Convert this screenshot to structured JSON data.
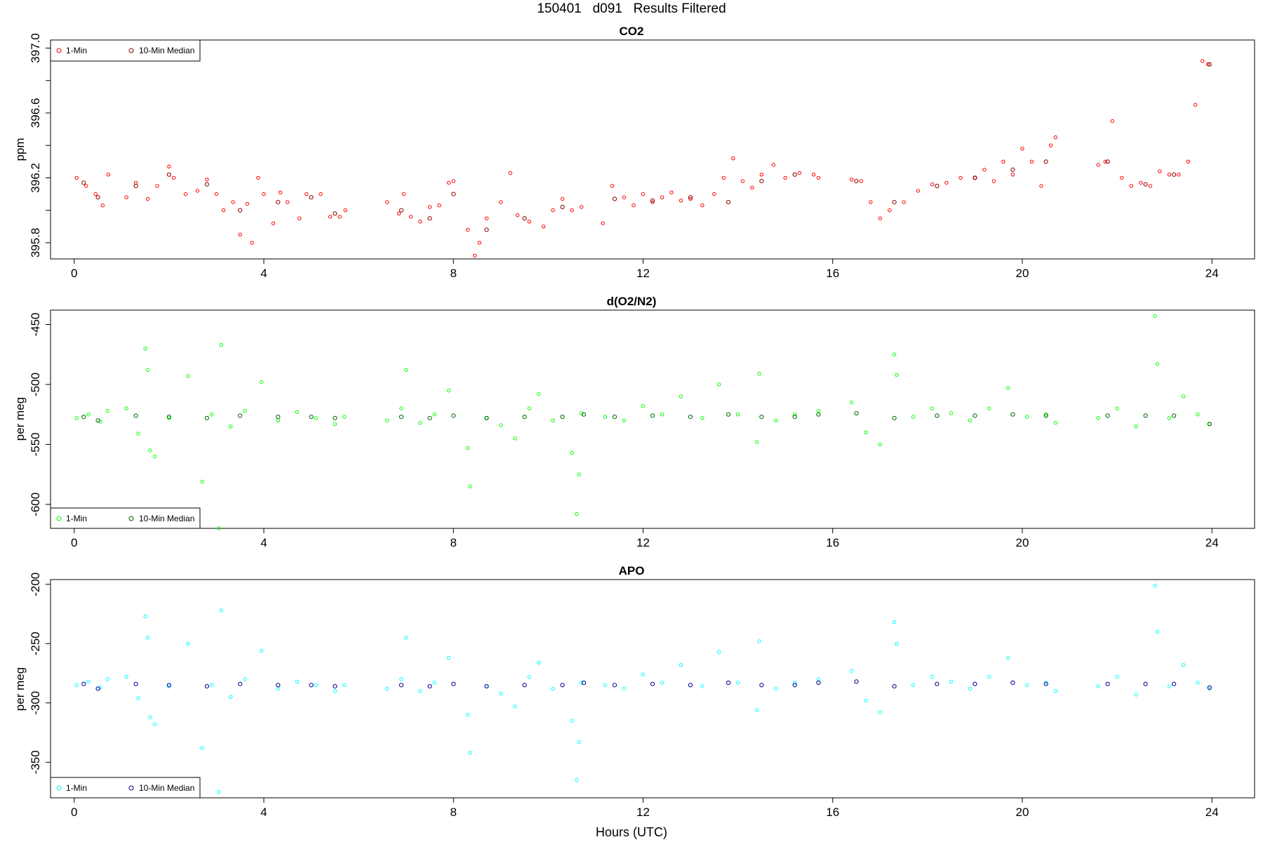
{
  "figure_title": "150401   d091   Results Filtered",
  "x_axis_label": "Hours (UTC)",
  "chart_data": [
    {
      "type": "scatter",
      "title": "CO2",
      "ylabel": "ppm",
      "xlabel": "Hours (UTC)",
      "xlim": [
        -0.5,
        24.9
      ],
      "ylim": [
        395.7,
        397.05
      ],
      "x_ticks": [
        0,
        4,
        8,
        12,
        16,
        20,
        24
      ],
      "x_tick_labels": [
        "0",
        "4",
        "8",
        "12",
        "16",
        "20",
        "24"
      ],
      "y_ticks": [
        395.8,
        396.2,
        396.6,
        397.0
      ],
      "y_tick_labels": [
        "395.8",
        "396.2",
        "396.6",
        "397.0"
      ],
      "y_minor_ticks": [
        396.0,
        396.4,
        396.8
      ],
      "grid": false,
      "legend": {
        "placement": "top-left",
        "entries": [
          {
            "label": "1-Min",
            "color": "#ff0000"
          },
          {
            "label": "10-Min Median",
            "color": "#8b0000"
          }
        ]
      },
      "series": [
        {
          "name": "1-Min",
          "color": "#ff0000",
          "x": [
            0.05,
            0.25,
            0.45,
            0.6,
            0.72,
            1.1,
            1.3,
            1.55,
            1.75,
            2.0,
            2.1,
            2.35,
            2.6,
            2.8,
            3.0,
            3.15,
            3.35,
            3.5,
            3.65,
            3.75,
            3.88,
            4.0,
            4.2,
            4.35,
            4.5,
            4.75,
            4.9,
            5.2,
            5.4,
            5.6,
            5.72,
            6.6,
            6.85,
            6.95,
            7.1,
            7.3,
            7.5,
            7.7,
            7.9,
            8.0,
            8.3,
            8.45,
            8.55,
            8.7,
            9.0,
            9.2,
            9.35,
            9.6,
            9.9,
            10.1,
            10.3,
            10.5,
            10.7,
            11.15,
            11.35,
            11.6,
            11.8,
            12.0,
            12.2,
            12.4,
            12.6,
            12.8,
            13.0,
            13.25,
            13.5,
            13.7,
            13.9,
            14.1,
            14.3,
            14.5,
            14.75,
            15.0,
            15.3,
            15.6,
            15.7,
            16.4,
            16.6,
            16.8,
            17.0,
            17.2,
            17.5,
            17.8,
            18.1,
            18.4,
            18.7,
            19.0,
            19.2,
            19.4,
            19.6,
            19.8,
            20.0,
            20.2,
            20.4,
            20.6,
            20.7,
            21.6,
            21.75,
            21.9,
            22.1,
            22.3,
            22.5,
            22.7,
            22.9,
            23.1,
            23.3,
            23.5,
            23.65,
            23.8,
            23.92
          ],
          "y": [
            396.2,
            396.15,
            396.1,
            396.03,
            396.22,
            396.08,
            396.17,
            396.07,
            396.15,
            396.27,
            396.2,
            396.1,
            396.12,
            396.19,
            396.1,
            396.0,
            396.05,
            395.85,
            396.04,
            395.8,
            396.2,
            396.1,
            395.92,
            396.11,
            396.05,
            395.95,
            396.1,
            396.1,
            395.96,
            395.96,
            396.0,
            396.05,
            395.98,
            396.1,
            395.96,
            395.93,
            396.02,
            396.03,
            396.17,
            396.18,
            395.88,
            395.72,
            395.8,
            395.95,
            396.05,
            396.23,
            395.97,
            395.93,
            395.9,
            396.0,
            396.07,
            396.0,
            396.02,
            395.92,
            396.15,
            396.08,
            396.03,
            396.1,
            396.05,
            396.08,
            396.11,
            396.06,
            396.07,
            396.03,
            396.1,
            396.2,
            396.32,
            396.18,
            396.14,
            396.22,
            396.28,
            396.2,
            396.23,
            396.22,
            396.2,
            396.19,
            396.18,
            396.05,
            395.95,
            396.0,
            396.05,
            396.12,
            396.16,
            396.17,
            396.2,
            396.2,
            396.25,
            396.18,
            396.3,
            396.22,
            396.38,
            396.3,
            396.15,
            396.4,
            396.45,
            396.28,
            396.3,
            396.55,
            396.2,
            396.15,
            396.17,
            396.15,
            396.24,
            396.22,
            396.22,
            396.3,
            396.65,
            396.92,
            396.9
          ]
        },
        {
          "name": "10-Min Median",
          "color": "#8b0000",
          "x": [
            0.2,
            0.5,
            1.3,
            2.0,
            2.8,
            3.5,
            4.3,
            5.0,
            5.5,
            6.9,
            7.5,
            8.0,
            8.7,
            9.5,
            10.3,
            11.4,
            12.2,
            13.0,
            13.8,
            14.5,
            15.2,
            16.5,
            17.3,
            18.2,
            19.0,
            19.8,
            20.5,
            21.8,
            22.6,
            23.2,
            23.95
          ],
          "y": [
            396.17,
            396.08,
            396.15,
            396.22,
            396.16,
            396.0,
            396.05,
            396.08,
            395.98,
            396.0,
            395.95,
            396.1,
            395.88,
            395.95,
            396.02,
            396.07,
            396.06,
            396.08,
            396.05,
            396.18,
            396.22,
            396.18,
            396.05,
            396.15,
            396.2,
            396.25,
            396.3,
            396.3,
            396.16,
            396.22,
            396.9
          ]
        }
      ]
    },
    {
      "type": "scatter",
      "title": "d(O2/N2)",
      "ylabel": "per meg",
      "xlabel": "Hours (UTC)",
      "xlim": [
        -0.5,
        24.9
      ],
      "ylim": [
        -620,
        -438
      ],
      "x_ticks": [
        0,
        4,
        8,
        12,
        16,
        20,
        24
      ],
      "x_tick_labels": [
        "0",
        "4",
        "8",
        "12",
        "16",
        "20",
        "24"
      ],
      "y_ticks": [
        -450,
        -500,
        -550,
        -600
      ],
      "y_tick_labels": [
        "-450",
        "-500",
        "-550",
        "-600"
      ],
      "grid": false,
      "legend": {
        "placement": "bottom-left",
        "entries": [
          {
            "label": "1-Min",
            "color": "#00ff00"
          },
          {
            "label": "10-Min Median",
            "color": "#006400"
          }
        ]
      },
      "series": [
        {
          "name": "1-Min",
          "color": "#00ff00",
          "x": [
            0.05,
            0.3,
            0.55,
            0.7,
            1.1,
            1.35,
            1.5,
            1.55,
            1.6,
            1.7,
            2.0,
            2.4,
            2.7,
            2.9,
            3.05,
            3.1,
            3.3,
            3.6,
            3.95,
            4.3,
            4.7,
            5.1,
            5.5,
            5.7,
            6.6,
            6.9,
            7.0,
            7.3,
            7.6,
            7.9,
            8.3,
            8.35,
            8.7,
            9.0,
            9.3,
            9.6,
            9.8,
            10.1,
            10.5,
            10.6,
            10.65,
            10.7,
            11.2,
            11.6,
            12.0,
            12.4,
            12.8,
            13.25,
            13.6,
            14.0,
            14.4,
            14.45,
            14.8,
            15.2,
            15.7,
            16.4,
            16.7,
            17.0,
            17.3,
            17.35,
            17.7,
            18.1,
            18.5,
            18.9,
            19.3,
            19.7,
            20.1,
            20.5,
            20.7,
            21.6,
            22.0,
            22.4,
            22.8,
            22.85,
            23.1,
            23.4,
            23.7,
            23.95
          ],
          "y": [
            -528,
            -525,
            -531,
            -522,
            -520,
            -541,
            -470,
            -488,
            -555,
            -560,
            -528,
            -493,
            -581,
            -525,
            -620,
            -467,
            -535,
            -522,
            -498,
            -530,
            -523,
            -528,
            -533,
            -527,
            -530,
            -520,
            -488,
            -532,
            -525,
            -505,
            -553,
            -585,
            -528,
            -534,
            -545,
            -520,
            -508,
            -530,
            -557,
            -608,
            -575,
            -524,
            -527,
            -530,
            -518,
            -525,
            -510,
            -528,
            -500,
            -525,
            -548,
            -491,
            -530,
            -525,
            -522,
            -515,
            -540,
            -550,
            -475,
            -492,
            -527,
            -520,
            -524,
            -530,
            -520,
            -503,
            -527,
            -525,
            -532,
            -528,
            -520,
            -535,
            -443,
            -483,
            -528,
            -510,
            -525,
            -533
          ]
        },
        {
          "name": "10-Min Median",
          "color": "#006400",
          "x": [
            0.2,
            0.5,
            1.3,
            2.0,
            2.8,
            3.5,
            4.3,
            5.0,
            5.5,
            6.9,
            7.5,
            8.0,
            8.7,
            9.5,
            10.3,
            10.75,
            11.4,
            12.2,
            13.0,
            13.8,
            14.5,
            15.2,
            15.7,
            16.5,
            17.3,
            18.2,
            19.0,
            19.8,
            20.5,
            21.8,
            22.6,
            23.2,
            23.95
          ],
          "y": [
            -527,
            -530,
            -526,
            -527,
            -528,
            -526,
            -527,
            -527,
            -528,
            -527,
            -528,
            -526,
            -528,
            -527,
            -527,
            -525,
            -527,
            -526,
            -527,
            -525,
            -527,
            -527,
            -525,
            -524,
            -528,
            -526,
            -526,
            -525,
            -526,
            -526,
            -526,
            -526,
            -533
          ]
        }
      ]
    },
    {
      "type": "scatter",
      "title": "APO",
      "ylabel": "per meg",
      "xlabel": "Hours (UTC)",
      "xlim": [
        -0.5,
        24.9
      ],
      "ylim": [
        -380,
        -196
      ],
      "x_ticks": [
        0,
        4,
        8,
        12,
        16,
        20,
        24
      ],
      "x_tick_labels": [
        "0",
        "4",
        "8",
        "12",
        "16",
        "20",
        "24"
      ],
      "y_ticks": [
        -200,
        -250,
        -300,
        -350
      ],
      "y_tick_labels": [
        "-200",
        "-250",
        "-300",
        "-350"
      ],
      "grid": false,
      "legend": {
        "placement": "bottom-left",
        "entries": [
          {
            "label": "1-Min",
            "color": "#00ffff"
          },
          {
            "label": "10-Min Median",
            "color": "#00008b"
          }
        ]
      },
      "series": [
        {
          "name": "1-Min",
          "color": "#00ffff",
          "x": [
            0.05,
            0.3,
            0.55,
            0.7,
            1.1,
            1.35,
            1.5,
            1.55,
            1.6,
            1.7,
            2.0,
            2.4,
            2.7,
            2.9,
            3.05,
            3.1,
            3.3,
            3.6,
            3.95,
            4.3,
            4.7,
            5.1,
            5.5,
            5.7,
            6.6,
            6.9,
            7.0,
            7.3,
            7.6,
            7.9,
            8.3,
            8.35,
            8.7,
            9.0,
            9.3,
            9.6,
            9.8,
            10.1,
            10.5,
            10.6,
            10.65,
            10.7,
            11.2,
            11.6,
            12.0,
            12.4,
            12.8,
            13.25,
            13.6,
            14.0,
            14.4,
            14.45,
            14.8,
            15.2,
            15.7,
            16.4,
            16.7,
            17.0,
            17.3,
            17.35,
            17.7,
            18.1,
            18.5,
            18.9,
            19.3,
            19.7,
            20.1,
            20.5,
            20.7,
            21.6,
            22.0,
            22.4,
            22.8,
            22.85,
            23.1,
            23.4,
            23.7,
            23.95
          ],
          "y": [
            -285,
            -282,
            -287,
            -280,
            -278,
            -296,
            -227,
            -245,
            -312,
            -318,
            -286,
            -250,
            -338,
            -285,
            -375,
            -222,
            -295,
            -280,
            -256,
            -288,
            -282,
            -285,
            -290,
            -285,
            -288,
            -280,
            -245,
            -290,
            -283,
            -262,
            -310,
            -342,
            -286,
            -292,
            -303,
            -278,
            -266,
            -288,
            -315,
            -365,
            -333,
            -283,
            -285,
            -288,
            -276,
            -283,
            -268,
            -286,
            -257,
            -283,
            -306,
            -248,
            -288,
            -283,
            -280,
            -273,
            -298,
            -308,
            -232,
            -250,
            -285,
            -278,
            -282,
            -288,
            -278,
            -262,
            -285,
            -283,
            -290,
            -286,
            -278,
            -293,
            -201,
            -240,
            -286,
            -268,
            -283,
            -288
          ]
        },
        {
          "name": "10-Min Median",
          "color": "#00008b",
          "x": [
            0.2,
            0.5,
            1.3,
            2.0,
            2.8,
            3.5,
            4.3,
            5.0,
            5.5,
            6.9,
            7.5,
            8.0,
            8.7,
            9.5,
            10.3,
            10.75,
            11.4,
            12.2,
            13.0,
            13.8,
            14.5,
            15.2,
            15.7,
            16.5,
            17.3,
            18.2,
            19.0,
            19.8,
            20.5,
            21.8,
            22.6,
            23.2,
            23.95
          ],
          "y": [
            -284,
            -288,
            -284,
            -285,
            -286,
            -284,
            -285,
            -285,
            -286,
            -285,
            -286,
            -284,
            -286,
            -285,
            -285,
            -283,
            -285,
            -284,
            -285,
            -283,
            -285,
            -285,
            -283,
            -282,
            -286,
            -284,
            -284,
            -283,
            -284,
            -284,
            -284,
            -284,
            -287
          ]
        }
      ]
    }
  ]
}
